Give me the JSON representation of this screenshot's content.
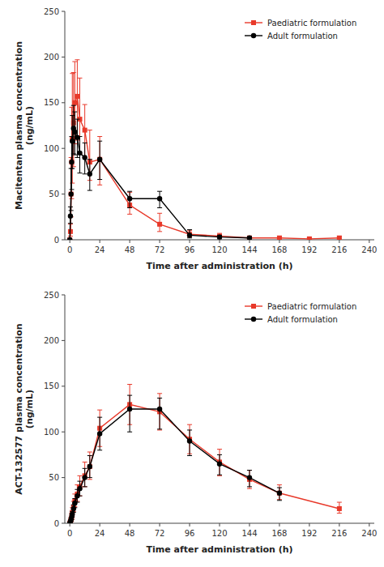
{
  "chart_data": [
    {
      "type": "line",
      "x_label": "Time after administration (h)",
      "y_label": "Macitentan plasma concentration\n(ng/mL)",
      "xlim": [
        -4,
        244
      ],
      "ylim": [
        0,
        250
      ],
      "xticks": [
        0,
        24,
        48,
        72,
        96,
        120,
        144,
        168,
        192,
        216,
        240
      ],
      "yticks": [
        0,
        50,
        100,
        150,
        200,
        250
      ],
      "grid": false,
      "legend": "upper-right",
      "series": [
        {
          "name": "Paediatric formulation",
          "color": "#e8392a",
          "marker": "square",
          "x": [
            0,
            0.5,
            1,
            1.5,
            2,
            3,
            4,
            6,
            8,
            12,
            16,
            24,
            48,
            72,
            96,
            120,
            144,
            168,
            192,
            216
          ],
          "values": [
            0,
            9,
            50,
            85,
            110,
            128,
            150,
            157,
            132,
            120,
            85,
            88,
            38,
            17,
            6,
            4,
            2,
            2,
            1,
            2
          ],
          "yerr_lo": [
            0,
            5,
            25,
            40,
            48,
            48,
            45,
            48,
            38,
            30,
            20,
            28,
            10,
            8,
            3,
            2,
            1,
            1,
            0.5,
            1
          ],
          "yerr_hi": [
            0,
            8,
            40,
            60,
            72,
            55,
            45,
            40,
            45,
            28,
            35,
            25,
            14,
            12,
            4,
            3,
            1.5,
            1.5,
            1,
            1.5
          ]
        },
        {
          "name": "Adult formulation",
          "color": "#000000",
          "marker": "circle",
          "x": [
            0,
            0.5,
            1,
            1.5,
            2,
            3,
            4,
            6,
            8,
            12,
            16,
            24,
            48,
            72,
            96,
            120,
            144
          ],
          "values": [
            0,
            26,
            50,
            85,
            108,
            122,
            118,
            112,
            95,
            90,
            72,
            88,
            45,
            45,
            5,
            3,
            2
          ],
          "yerr_lo": [
            0,
            8,
            18,
            30,
            30,
            28,
            25,
            22,
            22,
            18,
            18,
            22,
            10,
            10,
            3,
            2,
            1
          ],
          "yerr_hi": [
            0,
            10,
            28,
            28,
            28,
            25,
            22,
            20,
            18,
            16,
            16,
            20,
            8,
            8,
            6,
            2,
            1.5
          ]
        }
      ]
    },
    {
      "type": "line",
      "x_label": "Time after administration (h)",
      "y_label": "ACT-132577 plasma concentration\n(ng/mL)",
      "xlim": [
        -4,
        244
      ],
      "ylim": [
        0,
        250
      ],
      "xticks": [
        0,
        24,
        48,
        72,
        96,
        120,
        144,
        168,
        192,
        216,
        240
      ],
      "yticks": [
        0,
        50,
        100,
        150,
        200,
        250
      ],
      "grid": false,
      "legend": "upper-right",
      "series": [
        {
          "name": "Paediatric formulation",
          "color": "#e8392a",
          "marker": "square",
          "x": [
            0,
            0.5,
            1,
            1.5,
            2,
            3,
            4,
            6,
            8,
            12,
            16,
            24,
            48,
            72,
            96,
            120,
            144,
            168,
            216
          ],
          "values": [
            0,
            2,
            4,
            7,
            12,
            18,
            24,
            32,
            40,
            52,
            62,
            104,
            130,
            122,
            92,
            67,
            48,
            33,
            16
          ],
          "yerr_lo": [
            0,
            1,
            2,
            3,
            4,
            5,
            6,
            8,
            10,
            12,
            14,
            20,
            22,
            20,
            16,
            15,
            10,
            7,
            5
          ],
          "yerr_hi": [
            0,
            1,
            2,
            4,
            5,
            6,
            8,
            10,
            12,
            15,
            16,
            20,
            22,
            20,
            16,
            14,
            10,
            9,
            7
          ]
        },
        {
          "name": "Adult formulation",
          "color": "#000000",
          "marker": "circle",
          "x": [
            0,
            0.5,
            1,
            1.5,
            2,
            3,
            4,
            6,
            8,
            12,
            16,
            24,
            48,
            72,
            96,
            120,
            144,
            168
          ],
          "values": [
            0,
            2,
            4,
            7,
            10,
            16,
            22,
            30,
            38,
            50,
            62,
            98,
            125,
            125,
            90,
            65,
            50,
            33
          ],
          "yerr_lo": [
            0,
            1,
            2,
            3,
            3,
            4,
            5,
            7,
            8,
            10,
            12,
            18,
            25,
            22,
            16,
            12,
            10,
            8
          ],
          "yerr_hi": [
            0,
            1,
            2,
            3,
            3,
            4,
            5,
            7,
            8,
            10,
            12,
            18,
            15,
            12,
            12,
            10,
            8,
            6
          ]
        }
      ]
    }
  ]
}
